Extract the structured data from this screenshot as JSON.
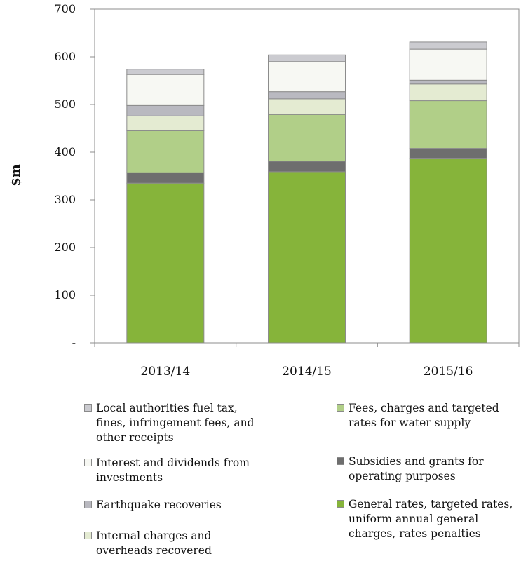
{
  "chart_data": {
    "type": "bar",
    "stacked": true,
    "categories": [
      "2013/14",
      "2014/15",
      "2015/16"
    ],
    "ylabel": "$m",
    "ylim": [
      0,
      700
    ],
    "yticks": [
      "-",
      "100",
      "200",
      "300",
      "400",
      "500",
      "600",
      "700"
    ],
    "grid": false,
    "legend_position": "bottom",
    "series": [
      {
        "name": "General rates, targeted rates, uniform annual general charges, rates penalties",
        "color": "#86b43a",
        "values": [
          335,
          359,
          386
        ]
      },
      {
        "name": "Subsidies and grants for operating purposes",
        "color": "#6e6e6e",
        "values": [
          22,
          22,
          22
        ]
      },
      {
        "name": "Fees, charges and targeted rates for water supply",
        "color": "#b1cf88",
        "values": [
          88,
          98,
          100
        ]
      },
      {
        "name": "Internal charges and overheads recovered",
        "color": "#e4ebd2",
        "values": [
          31,
          33,
          35
        ]
      },
      {
        "name": "Earthquake recoveries",
        "color": "#b9b9c0",
        "values": [
          22,
          15,
          8
        ]
      },
      {
        "name": "Interest and dividends from investments",
        "color": "#f7f8f3",
        "values": [
          65,
          63,
          65
        ]
      },
      {
        "name": "Local authorities fuel tax, fines, infringement fees, and other receipts",
        "color": "#cbcbd0",
        "values": [
          11,
          14,
          15
        ]
      }
    ]
  },
  "legend": [
    {
      "label": "Local authorities fuel tax, fines, infringement fees, and other receipts",
      "lines": [
        "Local authorities fuel tax,",
        "fines, infringement fees, and",
        "other receipts"
      ],
      "color": "#cbcbd0"
    },
    {
      "label": "Interest and dividends from investments",
      "lines": [
        "Interest and dividends from",
        "investments"
      ],
      "color": "#f7f8f3"
    },
    {
      "label": "Earthquake recoveries",
      "lines": [
        "Earthquake recoveries"
      ],
      "color": "#b9b9c0"
    },
    {
      "label": "Internal charges and overheads recovered",
      "lines": [
        "Internal charges and",
        "overheads recovered"
      ],
      "color": "#e4ebd2"
    },
    {
      "label": "Fees, charges and targeted rates for water supply",
      "lines": [
        "Fees, charges and targeted",
        "rates for water supply"
      ],
      "color": "#b1cf88"
    },
    {
      "label": "Subsidies and grants for operating purposes",
      "lines": [
        "Subsidies and grants for",
        "operating purposes"
      ],
      "color": "#6e6e6e"
    },
    {
      "label": "General rates, targeted rates, uniform annual general charges, rates penalties",
      "lines": [
        "General rates, targeted rates,",
        "uniform annual general",
        "charges, rates penalties"
      ],
      "color": "#86b43a"
    }
  ]
}
